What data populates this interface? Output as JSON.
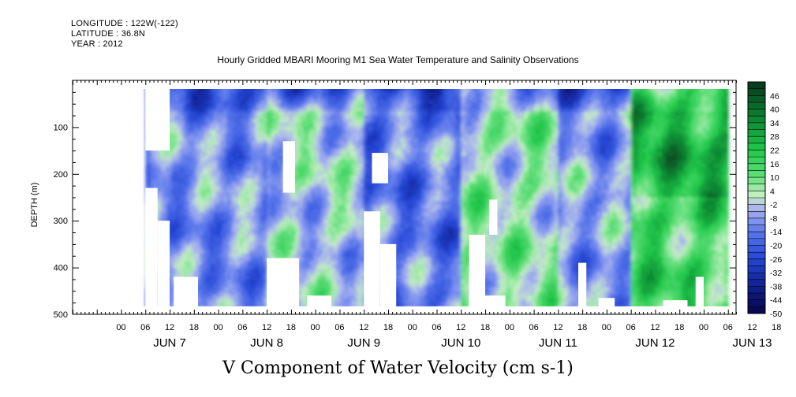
{
  "header": {
    "longitude": "LONGITUDE : 122W(-122)",
    "latitude": "LATITUDE : 36.8N",
    "year": "YEAR : 2012"
  },
  "chart_data": {
    "type": "heatmap",
    "title": "Hourly Gridded MBARI Mooring M1 Sea Water Temperature and Salinity Observations",
    "xlabel": "V Component of Water Velocity (cm s-1)",
    "ylabel": "DEPTH (m)",
    "x_hour_ticks": [
      "00",
      "06",
      "12",
      "18",
      "00",
      "06",
      "12",
      "18",
      "00",
      "06",
      "12",
      "18",
      "00",
      "06",
      "12",
      "18",
      "00",
      "06",
      "12",
      "18",
      "00",
      "06",
      "12",
      "18",
      "00",
      "06",
      "12",
      "18"
    ],
    "x_day_labels": [
      "JUN  7",
      "JUN  8",
      "JUN  9",
      "JUN 10",
      "JUN 11",
      "JUN 12",
      "JUN 13"
    ],
    "x_range_hours": [
      -12,
      152
    ],
    "y_ticks": [
      100,
      200,
      300,
      400,
      500
    ],
    "ylim": [
      0,
      500
    ],
    "y_inverted": true,
    "colorbar": {
      "labels": [
        "46",
        "40",
        "34",
        "28",
        "22",
        "16",
        "10",
        "4",
        "-2",
        "-8",
        "-14",
        "-20",
        "-26",
        "-32",
        "-38",
        "-44",
        "-50"
      ],
      "range": [
        -50,
        52
      ]
    },
    "colors": {
      "strong_negative": "#0a0a80",
      "negative": "#2f57e0",
      "weak_negative": "#a8b2ef",
      "weak_positive": "#c8f0c4",
      "positive": "#2ee05a",
      "strong_positive": "#0b4a1f"
    },
    "data_extent_hours": [
      6,
      150
    ],
    "data_depth_range_m": [
      20,
      483
    ],
    "regime_mean_velocity": [
      {
        "start_hour": 6,
        "end_hour": 36,
        "value": -10
      },
      {
        "start_hour": 36,
        "end_hour": 60,
        "value": -2
      },
      {
        "start_hour": 60,
        "end_hour": 84,
        "value": -14
      },
      {
        "start_hour": 84,
        "end_hour": 108,
        "value": 4
      },
      {
        "start_hour": 108,
        "end_hour": 126,
        "value": -8
      },
      {
        "start_hour": 126,
        "end_hour": 150,
        "value": 16
      }
    ]
  }
}
